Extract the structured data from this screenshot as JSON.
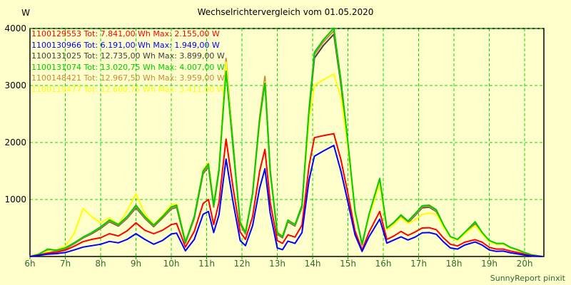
{
  "title": "Wechselrichtervergleich vom 01.05.2020",
  "watermark": "SunnyReport pinxit",
  "colors": {
    "background": "#ffffcc",
    "grid": "#00dd00",
    "frame": "#000000",
    "x_label": "#336633",
    "y_label": "#000000"
  },
  "legend": {
    "entries": [
      {
        "text": "1100129553 Tot: 7.841,00 Wh Max: 2.155,00 W",
        "color": "#ff0000"
      },
      {
        "text": "1100130966 Tot: 6.191,00 Wh Max: 1.949,00 W",
        "color": "#0000ff"
      },
      {
        "text": "1100131025 Tot: 12.735,00 Wh Max: 3.899,00 W",
        "color": "#404040"
      },
      {
        "text": "1100131074 Tot: 13.020,75 Wh Max: 4.007,00 W",
        "color": "#00cc00"
      },
      {
        "text": "1100148421 Tot: 12.967,50 Wh Max: 3.959,00 W",
        "color": "#c8883c"
      },
      {
        "text": "1100119477 Tot: 12.660,75 Wh Max: 3.411,00 W",
        "color": "#ffff00"
      }
    ]
  },
  "chart_data": {
    "type": "line",
    "title": "Wechselrichtervergleich vom 01.05.2020",
    "xlabel": "",
    "ylabel": "W",
    "ylim": [
      0,
      4000
    ],
    "xlim_hours": [
      6,
      20.55
    ],
    "grid": "on, green dashed, hourly vertical + 1000W horizontal",
    "legend_position": "top-left-inside, colored text, no swatches",
    "y_ticks": [
      1000,
      2000,
      3000,
      4000
    ],
    "x_tick_hours": [
      6,
      7,
      8,
      9,
      10,
      11,
      12,
      13,
      14,
      15,
      16,
      17,
      18,
      19,
      20
    ],
    "x_tick_labels": [
      "6h",
      "7h",
      "8h",
      "9h",
      "10h",
      "11h",
      "12h",
      "13h",
      "14h",
      "15h",
      "16h",
      "17h",
      "18h",
      "19h",
      "20h"
    ],
    "x_hours": [
      6.0,
      6.25,
      6.5,
      6.75,
      7.0,
      7.25,
      7.5,
      7.75,
      8.0,
      8.25,
      8.5,
      8.75,
      9.0,
      9.25,
      9.5,
      9.75,
      10.0,
      10.15,
      10.4,
      10.65,
      10.9,
      11.05,
      11.2,
      11.35,
      11.55,
      11.75,
      11.95,
      12.1,
      12.3,
      12.5,
      12.65,
      12.8,
      13.0,
      13.15,
      13.3,
      13.5,
      13.7,
      13.9,
      14.05,
      14.3,
      14.6,
      14.8,
      15.0,
      15.2,
      15.4,
      15.6,
      15.9,
      16.1,
      16.3,
      16.5,
      16.7,
      16.9,
      17.1,
      17.3,
      17.5,
      17.7,
      17.9,
      18.1,
      18.3,
      18.6,
      18.8,
      19.0,
      19.2,
      19.4,
      19.6,
      19.8,
      20.0,
      20.2,
      20.5
    ],
    "series": [
      {
        "name": "1100129553",
        "color": "#ff0000",
        "total_wh": "7.841,00",
        "max_w": "2.155,00",
        "values": [
          0,
          25,
          60,
          75,
          110,
          180,
          260,
          300,
          330,
          400,
          360,
          450,
          590,
          460,
          400,
          460,
          560,
          580,
          165,
          440,
          930,
          1000,
          560,
          950,
          2060,
          1200,
          430,
          300,
          700,
          1500,
          1880,
          950,
          280,
          230,
          380,
          340,
          550,
          1600,
          2085,
          2120,
          2155,
          1700,
          1100,
          450,
          115,
          430,
          790,
          300,
          360,
          440,
          370,
          430,
          500,
          505,
          470,
          330,
          215,
          185,
          250,
          295,
          250,
          160,
          130,
          130,
          95,
          70,
          40,
          15,
          0
        ]
      },
      {
        "name": "1100130966",
        "color": "#0000ff",
        "total_wh": "6.191,00",
        "max_w": "1.949,00",
        "values": [
          0,
          20,
          40,
          50,
          70,
          115,
          165,
          190,
          215,
          265,
          240,
          300,
          400,
          300,
          215,
          280,
          395,
          410,
          100,
          300,
          740,
          790,
          420,
          730,
          1710,
          950,
          280,
          190,
          540,
          1200,
          1540,
          760,
          150,
          120,
          270,
          230,
          420,
          1350,
          1760,
          1850,
          1949,
          1500,
          950,
          380,
          90,
          350,
          655,
          235,
          290,
          345,
          290,
          340,
          415,
          420,
          390,
          260,
          150,
          130,
          200,
          255,
          200,
          115,
          90,
          95,
          65,
          45,
          25,
          10,
          0
        ]
      },
      {
        "name": "1100131025",
        "color": "#404040",
        "total_wh": "12.735,00",
        "max_w": "3.899,00",
        "values": [
          0,
          30,
          95,
          95,
          135,
          225,
          325,
          400,
          495,
          610,
          535,
          670,
          855,
          670,
          525,
          675,
          835,
          865,
          235,
          670,
          1455,
          1575,
          870,
          1500,
          3420,
          1980,
          570,
          395,
          1100,
          2420,
          3120,
          1500,
          390,
          330,
          610,
          535,
          865,
          2540,
          3480,
          3700,
          3899,
          3020,
          1940,
          770,
          205,
          720,
          1320,
          475,
          575,
          700,
          590,
          720,
          855,
          865,
          790,
          535,
          335,
          285,
          400,
          580,
          400,
          265,
          215,
          215,
          150,
          110,
          60,
          20,
          0
        ]
      },
      {
        "name": "1100131074",
        "color": "#00cc00",
        "total_wh": "13.020,75",
        "max_w": "4.007,00",
        "values": [
          0,
          40,
          130,
          110,
          150,
          240,
          340,
          420,
          520,
          640,
          560,
          700,
          900,
          700,
          550,
          700,
          870,
          900,
          250,
          700,
          1500,
          1625,
          900,
          1530,
          3250,
          1900,
          600,
          420,
          1100,
          2400,
          3040,
          1480,
          420,
          350,
          640,
          560,
          900,
          2600,
          3580,
          3800,
          4007,
          3100,
          2000,
          800,
          220,
          750,
          1370,
          500,
          600,
          730,
          620,
          750,
          890,
          900,
          820,
          560,
          350,
          300,
          420,
          610,
          420,
          280,
          230,
          230,
          160,
          120,
          70,
          30,
          0
        ]
      },
      {
        "name": "1100148421",
        "color": "#c8883c",
        "total_wh": "12.967,50",
        "max_w": "3.959,00",
        "values": [
          0,
          35,
          100,
          100,
          140,
          230,
          330,
          410,
          505,
          620,
          545,
          680,
          870,
          680,
          535,
          685,
          845,
          875,
          240,
          680,
          1470,
          1590,
          880,
          1520,
          3475,
          1950,
          580,
          400,
          1120,
          2450,
          3160,
          1520,
          400,
          340,
          620,
          545,
          880,
          2570,
          3540,
          3760,
          3959,
          3060,
          1970,
          780,
          210,
          730,
          1340,
          485,
          585,
          710,
          600,
          730,
          870,
          880,
          800,
          545,
          340,
          290,
          410,
          590,
          410,
          270,
          220,
          220,
          155,
          115,
          65,
          25,
          0
        ]
      },
      {
        "name": "1100119477",
        "color": "#ffff00",
        "total_wh": "12.660,75",
        "max_w": "3.411,00",
        "values": [
          0,
          50,
          90,
          120,
          180,
          400,
          840,
          700,
          590,
          680,
          560,
          800,
          1100,
          750,
          560,
          720,
          910,
          920,
          260,
          700,
          1520,
          1650,
          920,
          1550,
          3411,
          1900,
          620,
          440,
          1100,
          2350,
          3060,
          1450,
          430,
          360,
          640,
          560,
          900,
          2400,
          3000,
          3100,
          3200,
          2800,
          1900,
          750,
          230,
          700,
          1280,
          470,
          560,
          680,
          580,
          640,
          740,
          760,
          740,
          520,
          330,
          280,
          390,
          545,
          390,
          260,
          215,
          215,
          150,
          110,
          65,
          10,
          0
        ]
      }
    ]
  }
}
